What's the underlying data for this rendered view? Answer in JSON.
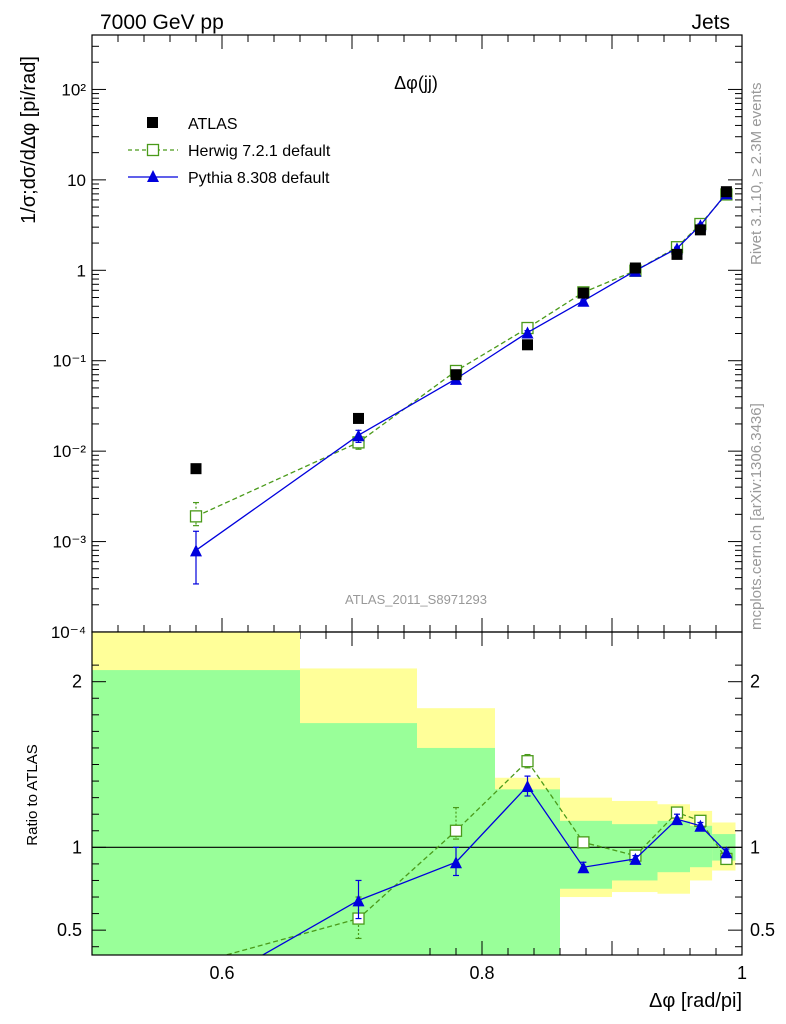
{
  "header": {
    "left": "7000 GeV pp",
    "right": "Jets"
  },
  "side_labels": {
    "rivet": "Rivet 3.1.10, ≥ 2.3M events",
    "mcplots": "mcplots.cern.ch [arXiv:1306.3436]"
  },
  "chart_data": [
    {
      "type": "scatter",
      "title": "Δφ(jj)",
      "ylabel": "1/σ;dσ/dΔφ [pi/rad]",
      "yscale": "log",
      "ylim": [
        0.0001,
        400
      ],
      "xlim": [
        0.5,
        1.0
      ],
      "analysis_label": "ATLAS_2011_S8971293",
      "y_tick_labels": [
        "10⁻⁴",
        "10⁻³",
        "10⁻²",
        "10⁻¹",
        "1",
        "10",
        "10²"
      ],
      "legend": "top-left",
      "x": [
        0.58,
        0.705,
        0.78,
        0.835,
        0.878,
        0.918,
        0.95,
        0.968,
        0.988
      ],
      "series": [
        {
          "name": "ATLAS",
          "color": "#000000",
          "marker": "square-filled",
          "values": [
            0.0064,
            0.023,
            0.07,
            0.15,
            0.56,
            1.06,
            1.5,
            2.8,
            7.4
          ]
        },
        {
          "name": "Herwig 7.2.1 default",
          "color": "#4a9a1a",
          "marker": "square-open",
          "line": "dashed",
          "values": [
            0.0019,
            0.0125,
            0.077,
            0.23,
            0.57,
            0.99,
            1.8,
            3.25,
            6.9
          ],
          "err_low": [
            0.0015,
            0.0105,
            0.074,
            0.22,
            0.55,
            0.97,
            1.75,
            3.15,
            6.8
          ],
          "err_high": [
            0.0027,
            0.015,
            0.08,
            0.24,
            0.59,
            1.01,
            1.85,
            3.35,
            7.0
          ]
        },
        {
          "name": "Pythia 8.308 default",
          "color": "#0000dd",
          "marker": "triangle-filled",
          "line": "solid",
          "values": [
            0.0008,
            0.015,
            0.063,
            0.205,
            0.46,
            0.99,
            1.75,
            3.15,
            7.1
          ],
          "err_low": [
            0.00034,
            0.0125,
            0.06,
            0.195,
            0.45,
            0.97,
            1.7,
            3.05,
            7.0
          ],
          "err_high": [
            0.0013,
            0.017,
            0.066,
            0.215,
            0.47,
            1.01,
            1.8,
            3.25,
            7.2
          ]
        }
      ]
    },
    {
      "type": "line",
      "ylabel": "Ratio to ATLAS",
      "xlabel": "Δφ [rad/pi]",
      "ylim": [
        0.35,
        2.3
      ],
      "xlim": [
        0.5,
        1.0
      ],
      "x_ticks": [
        0.6,
        0.8,
        1.0
      ],
      "x_tick_labels": [
        "0.6",
        "0.8",
        "1"
      ],
      "y_ticks": [
        0.5,
        1,
        2
      ],
      "y_tick_labels": [
        "0.5",
        "1",
        "2"
      ],
      "bands": {
        "bin_edges": [
          0.5,
          0.66,
          0.75,
          0.81,
          0.86,
          0.9,
          0.935,
          0.96,
          0.977,
          0.995
        ],
        "yellow_low": [
          0.35,
          0.35,
          0.52,
          0.62,
          0.7,
          0.73,
          0.72,
          0.8,
          0.86
        ],
        "yellow_high": [
          2.3,
          2.08,
          1.84,
          1.42,
          1.3,
          1.28,
          1.26,
          1.22,
          1.15
        ],
        "green_low": [
          0.35,
          0.35,
          0.35,
          0.35,
          0.75,
          0.8,
          0.85,
          0.88,
          0.92
        ],
        "green_high": [
          2.07,
          1.75,
          1.6,
          1.35,
          1.16,
          1.14,
          1.16,
          1.13,
          1.08
        ]
      },
      "x": [
        0.58,
        0.705,
        0.78,
        0.835,
        0.878,
        0.918,
        0.95,
        0.968,
        0.988
      ],
      "series": [
        {
          "name": "Herwig 7.2.1 default",
          "color": "#4a9a1a",
          "marker": "square-open",
          "line": "dashed",
          "values": [
            0.3,
            0.57,
            1.1,
            1.52,
            1.03,
            0.95,
            1.21,
            1.16,
            0.93
          ],
          "err_low": [
            0.3,
            0.45,
            1.05,
            1.48,
            1.0,
            0.93,
            1.18,
            1.14,
            0.91
          ],
          "err_high": [
            0.3,
            0.7,
            1.24,
            1.56,
            1.06,
            0.97,
            1.24,
            1.18,
            0.95
          ]
        },
        {
          "name": "Pythia 8.308 default",
          "color": "#0000dd",
          "marker": "triangle-filled",
          "line": "solid",
          "values": [
            0.12,
            0.68,
            0.91,
            1.37,
            0.88,
            0.93,
            1.17,
            1.13,
            0.97
          ],
          "err_low": [
            0.12,
            0.57,
            0.83,
            1.31,
            0.85,
            0.91,
            1.14,
            1.11,
            0.95
          ],
          "err_high": [
            0.12,
            0.8,
            1.0,
            1.43,
            0.91,
            0.95,
            1.2,
            1.15,
            0.99
          ]
        }
      ]
    }
  ]
}
